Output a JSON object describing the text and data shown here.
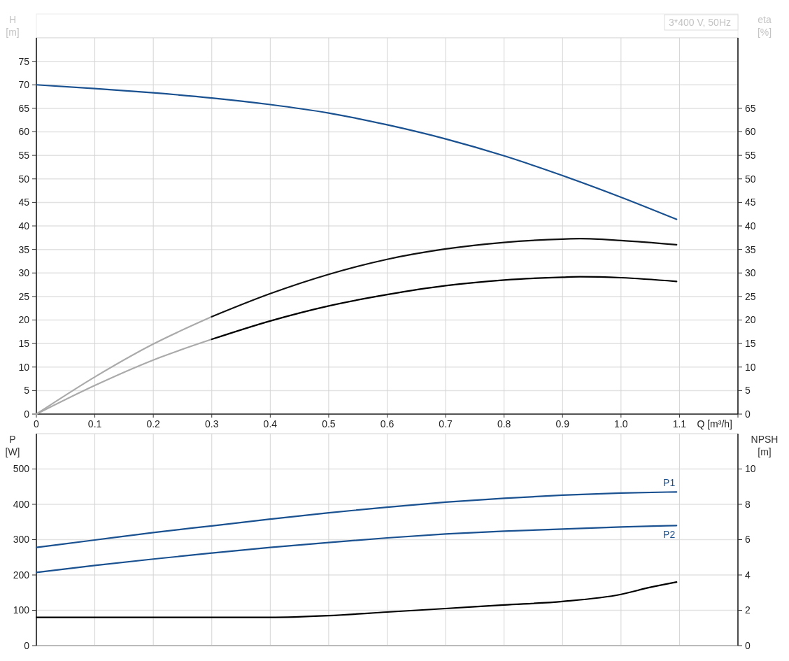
{
  "chart_data": [
    {
      "type": "line",
      "xlabel": "Q [m³/h]",
      "ylabel": "H [m]",
      "y2label": "eta [%]",
      "annotations": [
        "3*400 V, 50Hz"
      ],
      "xlim": [
        0,
        1.2
      ],
      "xticks": [
        0,
        0.1,
        0.2,
        0.3,
        0.4,
        0.5,
        0.6,
        0.7,
        0.8,
        0.9,
        {
          "value": 1,
          "label": "1.0"
        },
        1.1,
        {
          "value": 1.2,
          "label": null
        }
      ],
      "ylim": [
        0,
        80
      ],
      "yticks": [
        0,
        5,
        10,
        15,
        20,
        25,
        30,
        35,
        40,
        45,
        50,
        55,
        60,
        65,
        70,
        75
      ],
      "y2lim": [
        0,
        80
      ],
      "y2ticks": [
        0,
        5,
        10,
        15,
        20,
        25,
        30,
        35,
        40,
        45,
        50,
        55,
        60,
        65
      ],
      "grid": true,
      "series": [
        {
          "color": "#1a5190",
          "x": [
            0,
            0.1,
            0.2,
            0.3,
            0.4,
            0.5,
            0.6,
            0.7,
            0.8,
            0.9,
            1.0,
            1.095
          ],
          "values": [
            70,
            69.2,
            68.3,
            67.2,
            65.8,
            64.0,
            61.5,
            58.5,
            54.9,
            50.7,
            46.1,
            41.4
          ]
        },
        {
          "color": "#aaaaaa",
          "axis": "y2",
          "x": [
            0,
            0.1,
            0.2,
            0.3
          ],
          "values": [
            0,
            7.9,
            14.9,
            20.7
          ]
        },
        {
          "color": "#111111",
          "axis": "y2",
          "x": [
            0.3,
            0.4,
            0.5,
            0.6,
            0.7,
            0.8,
            0.9,
            0.93,
            1.0,
            1.095
          ],
          "values": [
            20.7,
            25.6,
            29.7,
            32.9,
            35.1,
            36.5,
            37.2,
            37.3,
            36.9,
            36.0
          ]
        },
        {
          "color": "#aaaaaa",
          "axis": "y2",
          "x": [
            0,
            0.1,
            0.2,
            0.3
          ],
          "values": [
            0,
            6.1,
            11.5,
            15.9
          ]
        },
        {
          "color": "#000000",
          "axis": "y2",
          "x": [
            0.3,
            0.4,
            0.5,
            0.6,
            0.7,
            0.8,
            0.9,
            0.93,
            1.0,
            1.095
          ],
          "values": [
            15.9,
            19.8,
            23.0,
            25.4,
            27.3,
            28.5,
            29.1,
            29.2,
            29.0,
            28.2
          ]
        }
      ]
    },
    {
      "type": "line",
      "ylabel": "P [W]",
      "y2label": "NPSH [m]",
      "xlim": [
        0,
        1.2
      ],
      "xticks": [
        0,
        0.1,
        0.2,
        0.3,
        0.4,
        0.5,
        0.6,
        0.7,
        0.8,
        0.9,
        1,
        1.1
      ],
      "ylim": [
        0,
        600
      ],
      "yticks": [
        0,
        100,
        200,
        300,
        400,
        500
      ],
      "y2lim": [
        0,
        12
      ],
      "y2ticks": [
        0,
        2,
        4,
        6,
        8,
        10
      ],
      "grid": true,
      "tick_labels": "y",
      "series": [
        {
          "name": "P1",
          "color": "#1a5190",
          "x": [
            0,
            0.1,
            0.2,
            0.3,
            0.4,
            0.5,
            0.6,
            0.7,
            0.8,
            0.9,
            1.0,
            1.095
          ],
          "values": [
            278,
            299,
            320,
            339,
            358,
            376,
            392,
            406,
            417,
            426,
            432,
            435
          ]
        },
        {
          "name": "P2",
          "color": "#1a5190",
          "x": [
            0,
            0.1,
            0.2,
            0.3,
            0.4,
            0.5,
            0.6,
            0.7,
            0.8,
            0.9,
            1.0,
            1.095
          ],
          "values": [
            207,
            227,
            245,
            262,
            278,
            292,
            305,
            316,
            324,
            330,
            336,
            340
          ]
        },
        {
          "color": "#000000",
          "axis": "y2",
          "x": [
            0,
            0.1,
            0.2,
            0.3,
            0.4,
            0.5,
            0.6,
            0.7,
            0.8,
            0.9,
            1.0,
            1.05,
            1.095
          ],
          "values": [
            1.6,
            1.6,
            1.6,
            1.6,
            1.6,
            1.7,
            1.9,
            2.1,
            2.3,
            2.5,
            2.9,
            3.3,
            3.6
          ]
        }
      ]
    }
  ]
}
